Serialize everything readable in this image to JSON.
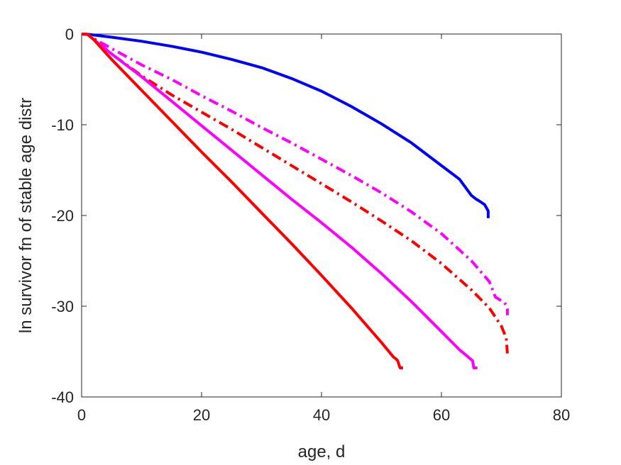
{
  "chart_data": {
    "type": "line",
    "xlabel": "age, d",
    "ylabel": "ln survivor fn of stable age distr",
    "xlim": [
      0,
      80
    ],
    "ylim": [
      -40,
      0
    ],
    "xticks": [
      0,
      20,
      40,
      60,
      80
    ],
    "yticks": [
      0,
      -10,
      -20,
      -30,
      -40
    ],
    "xtick_labels": [
      "0",
      "20",
      "40",
      "60",
      "80"
    ],
    "ytick_labels": [
      "0",
      "-10",
      "-20",
      "-30",
      "-40"
    ],
    "grid": false,
    "legend": "none",
    "series": [
      {
        "color": "#0000ff",
        "style": "solid",
        "x": [
          0,
          1,
          5,
          10,
          15,
          20,
          25,
          30,
          35,
          40,
          45,
          50,
          55,
          60,
          63,
          65,
          65.8,
          66.3,
          67.2,
          67.8,
          67.8
        ],
        "y": [
          0,
          -0.02,
          -0.35,
          -0.8,
          -1.35,
          -2.0,
          -2.8,
          -3.7,
          -4.9,
          -6.3,
          -8.0,
          -9.9,
          -12.0,
          -14.5,
          -16.0,
          -17.8,
          -18.2,
          -18.4,
          -18.8,
          -19.5,
          -20.3
        ]
      },
      {
        "color": "#ff00ff",
        "style": "dashdot",
        "x": [
          0,
          1,
          2,
          5,
          10,
          15,
          20,
          25,
          30,
          35,
          40,
          45,
          50,
          55,
          60,
          65,
          68,
          69,
          70,
          70.5,
          70.8,
          71,
          71
        ],
        "y": [
          0,
          -0.05,
          -0.5,
          -1.6,
          -3.4,
          -5.0,
          -6.8,
          -8.5,
          -10.3,
          -12.0,
          -13.8,
          -15.6,
          -17.5,
          -19.6,
          -22.0,
          -25.0,
          -27.3,
          -29.0,
          -29.4,
          -29.6,
          -29.9,
          -30.3,
          -31.0
        ]
      },
      {
        "color": "#ff0000",
        "style": "dashdot",
        "x": [
          0,
          1,
          2,
          5,
          10,
          15,
          20,
          25,
          30,
          35,
          40,
          45,
          50,
          55,
          60,
          65,
          68,
          70,
          70.8,
          71
        ],
        "y": [
          0,
          -0.05,
          -0.5,
          -2.2,
          -4.6,
          -6.7,
          -8.6,
          -10.5,
          -12.5,
          -14.5,
          -16.5,
          -18.5,
          -20.6,
          -22.8,
          -25.3,
          -28.2,
          -30.2,
          -32.2,
          -33.5,
          -35.2
        ]
      },
      {
        "color": "#ff00ff",
        "style": "solid",
        "x": [
          0,
          1,
          2,
          5,
          10,
          15,
          20,
          25,
          30,
          35,
          40,
          45,
          50,
          55,
          60,
          63,
          64.3,
          64.8,
          65.2,
          65.4,
          66.0
        ],
        "y": [
          0,
          -0.05,
          -0.6,
          -2.2,
          -4.7,
          -7.4,
          -10.1,
          -12.8,
          -15.5,
          -18.2,
          -20.8,
          -23.5,
          -26.4,
          -29.5,
          -32.8,
          -34.8,
          -35.5,
          -35.8,
          -36.0,
          -36.8,
          -36.8
        ]
      },
      {
        "color": "#ff0000",
        "style": "solid",
        "x": [
          0,
          1,
          2,
          5,
          10,
          15,
          20,
          25,
          30,
          35,
          40,
          45,
          50,
          52,
          52.4,
          52.7,
          53.1,
          53.6
        ],
        "y": [
          0,
          -0.05,
          -0.6,
          -2.8,
          -6.2,
          -9.6,
          -13.0,
          -16.3,
          -19.7,
          -23.1,
          -26.6,
          -30.2,
          -34.0,
          -35.6,
          -35.8,
          -36.0,
          -36.8,
          -36.8
        ]
      }
    ]
  }
}
